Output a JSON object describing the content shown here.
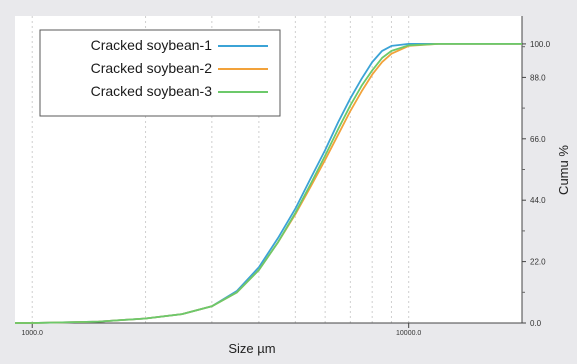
{
  "chart_data": {
    "type": "line",
    "x_scale": "log",
    "xlabel": "Size µm",
    "ylabel": "Cumu %",
    "xlim": [
      900,
      20000
    ],
    "ylim": [
      0,
      110
    ],
    "x_ticks": [
      1000,
      10000
    ],
    "x_tick_labels": [
      "1000.0",
      "10000.0"
    ],
    "y_ticks": [
      0,
      22,
      44,
      66,
      88,
      100
    ],
    "y_tick_labels": [
      "0.0",
      "22.0",
      "44.0",
      "66.0",
      "88.0",
      "100.0"
    ],
    "grid": true,
    "legend_position": "top-left",
    "series": [
      {
        "name": "Cracked soybean-1",
        "color": "#3ba3d6",
        "points": [
          [
            900,
            0
          ],
          [
            1000,
            0
          ],
          [
            1500,
            0.5
          ],
          [
            2000,
            1.6
          ],
          [
            2500,
            3.2
          ],
          [
            3000,
            6
          ],
          [
            3500,
            11.5
          ],
          [
            4000,
            20
          ],
          [
            4500,
            30.5
          ],
          [
            5000,
            41
          ],
          [
            5500,
            52
          ],
          [
            6000,
            62
          ],
          [
            6500,
            72
          ],
          [
            7000,
            80.5
          ],
          [
            7500,
            87.5
          ],
          [
            8000,
            93.5
          ],
          [
            8500,
            97.5
          ],
          [
            9000,
            99.3
          ],
          [
            10000,
            100
          ],
          [
            12000,
            100
          ],
          [
            16000,
            100
          ],
          [
            20000,
            100
          ]
        ]
      },
      {
        "name": "Cracked soybean-2",
        "color": "#f2a23a",
        "points": [
          [
            900,
            0
          ],
          [
            1000,
            0
          ],
          [
            1500,
            0.5
          ],
          [
            2000,
            1.6
          ],
          [
            2500,
            3.2
          ],
          [
            3000,
            6
          ],
          [
            3500,
            11
          ],
          [
            4000,
            19
          ],
          [
            4500,
            29
          ],
          [
            5000,
            39
          ],
          [
            5500,
            49
          ],
          [
            6000,
            58.5
          ],
          [
            6500,
            67.5
          ],
          [
            7000,
            76
          ],
          [
            7500,
            83
          ],
          [
            8000,
            89
          ],
          [
            8500,
            93.5
          ],
          [
            9000,
            96.5
          ],
          [
            10000,
            99.3
          ],
          [
            12000,
            100
          ],
          [
            16000,
            100
          ],
          [
            20000,
            100
          ]
        ]
      },
      {
        "name": "Cracked soybean-3",
        "color": "#6cc96a",
        "points": [
          [
            900,
            0
          ],
          [
            1000,
            0
          ],
          [
            1500,
            0.5
          ],
          [
            2000,
            1.6
          ],
          [
            2500,
            3.2
          ],
          [
            3000,
            6
          ],
          [
            3500,
            11
          ],
          [
            4000,
            19
          ],
          [
            4500,
            29
          ],
          [
            5000,
            39.5
          ],
          [
            5500,
            50
          ],
          [
            6000,
            60
          ],
          [
            6500,
            69.5
          ],
          [
            7000,
            78
          ],
          [
            7500,
            85
          ],
          [
            8000,
            90.5
          ],
          [
            8500,
            95
          ],
          [
            9000,
            97.5
          ],
          [
            10000,
            99.5
          ],
          [
            12000,
            100
          ],
          [
            16000,
            100
          ],
          [
            20000,
            100
          ]
        ]
      }
    ]
  }
}
